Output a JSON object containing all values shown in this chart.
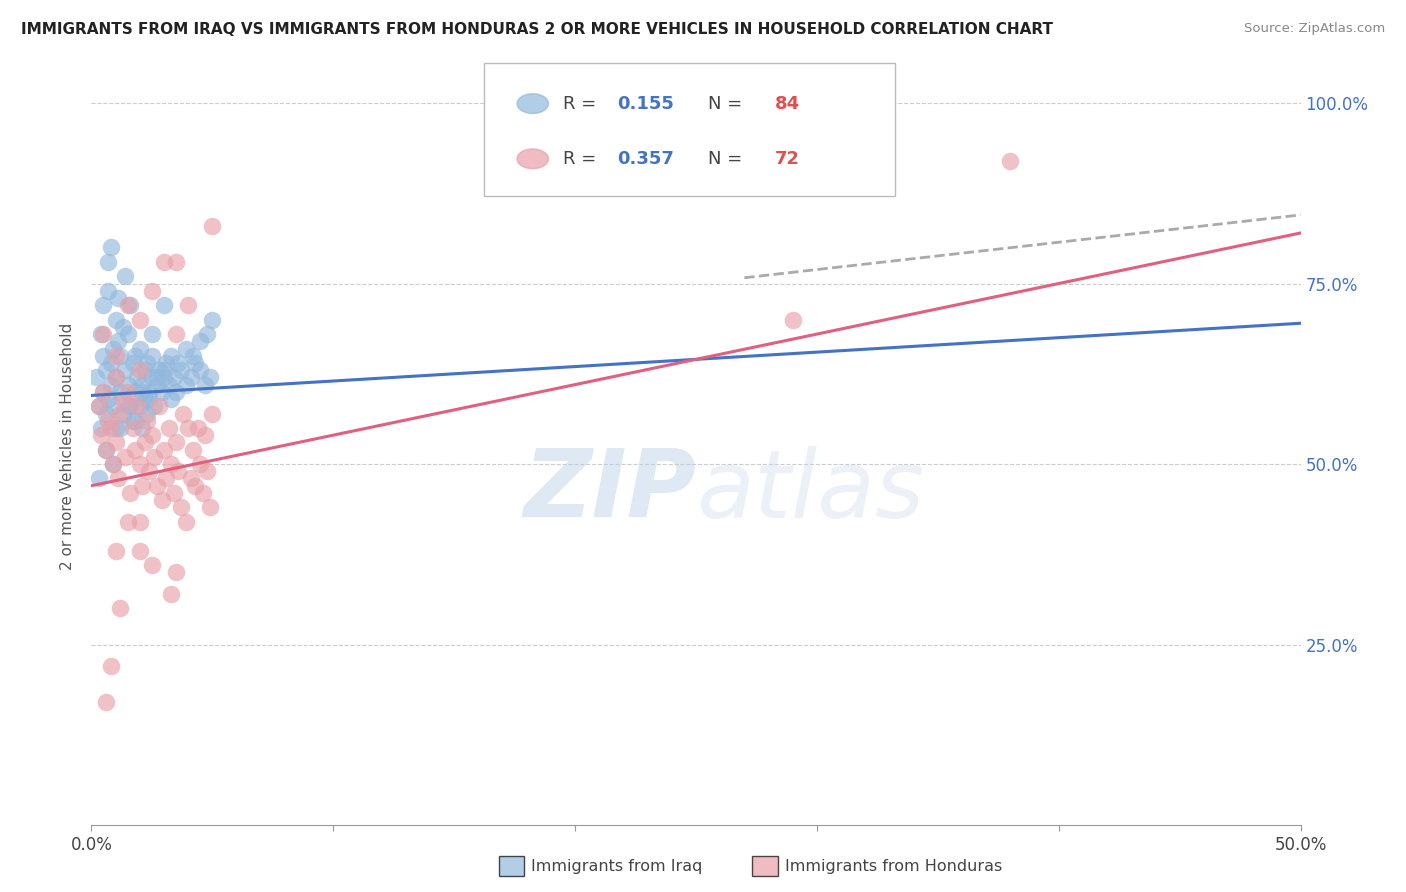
{
  "title": "IMMIGRANTS FROM IRAQ VS IMMIGRANTS FROM HONDURAS 2 OR MORE VEHICLES IN HOUSEHOLD CORRELATION CHART",
  "source": "Source: ZipAtlas.com",
  "ylabel": "2 or more Vehicles in Household",
  "xmin": 0.0,
  "xmax": 0.5,
  "ymin": 0.0,
  "ymax": 1.05,
  "yticks": [
    0.25,
    0.5,
    0.75,
    1.0
  ],
  "ytick_labels": [
    "25.0%",
    "50.0%",
    "75.0%",
    "100.0%"
  ],
  "xticks": [
    0.0,
    0.1,
    0.2,
    0.3,
    0.4,
    0.5
  ],
  "iraq_color": "#92b8dc",
  "honduras_color": "#e8a0a8",
  "iraq_line_color": "#4472c4",
  "honduras_line_color": "#e06080",
  "watermark_zip": "ZIP",
  "watermark_atlas": "atlas",
  "legend_iraq_R": "0.155",
  "legend_iraq_N": "84",
  "legend_honduras_R": "0.357",
  "legend_honduras_N": "72",
  "iraq_scatter_x": [
    0.002,
    0.003,
    0.004,
    0.004,
    0.005,
    0.005,
    0.005,
    0.006,
    0.006,
    0.007,
    0.007,
    0.007,
    0.008,
    0.008,
    0.008,
    0.009,
    0.009,
    0.01,
    0.01,
    0.01,
    0.011,
    0.011,
    0.012,
    0.012,
    0.013,
    0.013,
    0.014,
    0.014,
    0.015,
    0.015,
    0.016,
    0.016,
    0.017,
    0.017,
    0.018,
    0.018,
    0.019,
    0.02,
    0.02,
    0.021,
    0.021,
    0.022,
    0.022,
    0.023,
    0.023,
    0.024,
    0.025,
    0.025,
    0.026,
    0.027,
    0.028,
    0.029,
    0.03,
    0.031,
    0.032,
    0.033,
    0.034,
    0.035,
    0.037,
    0.039,
    0.041,
    0.043,
    0.045,
    0.047,
    0.049,
    0.003,
    0.006,
    0.009,
    0.012,
    0.015,
    0.018,
    0.021,
    0.024,
    0.027,
    0.03,
    0.033,
    0.036,
    0.039,
    0.042,
    0.045,
    0.048,
    0.05,
    0.025,
    0.03
  ],
  "iraq_scatter_y": [
    0.62,
    0.58,
    0.55,
    0.68,
    0.65,
    0.6,
    0.72,
    0.57,
    0.63,
    0.59,
    0.74,
    0.78,
    0.61,
    0.64,
    0.8,
    0.58,
    0.66,
    0.55,
    0.62,
    0.7,
    0.67,
    0.73,
    0.6,
    0.65,
    0.57,
    0.69,
    0.63,
    0.76,
    0.61,
    0.68,
    0.58,
    0.72,
    0.64,
    0.56,
    0.65,
    0.6,
    0.62,
    0.58,
    0.66,
    0.61,
    0.55,
    0.63,
    0.59,
    0.64,
    0.57,
    0.6,
    0.62,
    0.65,
    0.58,
    0.61,
    0.63,
    0.6,
    0.62,
    0.64,
    0.61,
    0.59,
    0.62,
    0.6,
    0.63,
    0.61,
    0.62,
    0.64,
    0.63,
    0.61,
    0.62,
    0.48,
    0.52,
    0.5,
    0.55,
    0.58,
    0.56,
    0.6,
    0.59,
    0.62,
    0.63,
    0.65,
    0.64,
    0.66,
    0.65,
    0.67,
    0.68,
    0.7,
    0.68,
    0.72
  ],
  "honduras_scatter_x": [
    0.003,
    0.004,
    0.005,
    0.006,
    0.007,
    0.008,
    0.009,
    0.01,
    0.01,
    0.011,
    0.012,
    0.013,
    0.014,
    0.015,
    0.016,
    0.017,
    0.018,
    0.019,
    0.02,
    0.02,
    0.021,
    0.022,
    0.023,
    0.024,
    0.025,
    0.026,
    0.027,
    0.028,
    0.029,
    0.03,
    0.031,
    0.032,
    0.033,
    0.034,
    0.035,
    0.036,
    0.037,
    0.038,
    0.039,
    0.04,
    0.041,
    0.042,
    0.043,
    0.044,
    0.045,
    0.046,
    0.047,
    0.048,
    0.049,
    0.05,
    0.005,
    0.01,
    0.015,
    0.02,
    0.025,
    0.03,
    0.015,
    0.02,
    0.025,
    0.035,
    0.04,
    0.035,
    0.033,
    0.38,
    0.29,
    0.05,
    0.035,
    0.02,
    0.01,
    0.012,
    0.008,
    0.006
  ],
  "honduras_scatter_y": [
    0.58,
    0.54,
    0.6,
    0.52,
    0.56,
    0.55,
    0.5,
    0.53,
    0.62,
    0.48,
    0.57,
    0.59,
    0.51,
    0.6,
    0.46,
    0.55,
    0.52,
    0.58,
    0.5,
    0.63,
    0.47,
    0.53,
    0.56,
    0.49,
    0.54,
    0.51,
    0.47,
    0.58,
    0.45,
    0.52,
    0.48,
    0.55,
    0.5,
    0.46,
    0.53,
    0.49,
    0.44,
    0.57,
    0.42,
    0.55,
    0.48,
    0.52,
    0.47,
    0.55,
    0.5,
    0.46,
    0.54,
    0.49,
    0.44,
    0.57,
    0.68,
    0.65,
    0.72,
    0.7,
    0.74,
    0.78,
    0.42,
    0.38,
    0.36,
    0.68,
    0.72,
    0.35,
    0.32,
    0.92,
    0.7,
    0.83,
    0.78,
    0.42,
    0.38,
    0.3,
    0.22,
    0.17
  ],
  "iraq_line_x": [
    0.0,
    0.5
  ],
  "iraq_line_y": [
    0.595,
    0.695
  ],
  "honduras_line_x": [
    0.0,
    0.5
  ],
  "honduras_line_y": [
    0.47,
    0.82
  ],
  "dash_line_x": [
    0.27,
    0.5
  ],
  "dash_line_y": [
    0.758,
    0.845
  ]
}
